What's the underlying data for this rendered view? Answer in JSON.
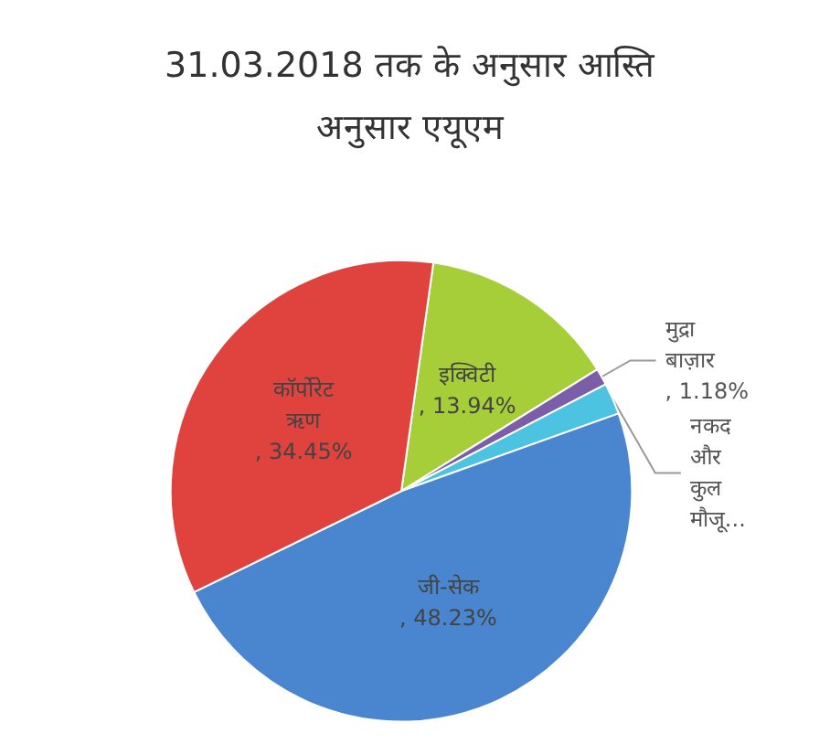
{
  "chart_data": {
    "type": "pie",
    "title": "31.03.2018 तक के अनुसार आस्ति\nअनुसार एयूएम",
    "categories": [
      "इक्विटी",
      "मुद्रा बाज़ार",
      "नकद और कुल मौजू...",
      "जी-सेक",
      "कॉर्पोरेट ऋण"
    ],
    "values": [
      13.94,
      1.18,
      2.2,
      48.23,
      34.45
    ],
    "value_labels": [
      ", 13.94%",
      ", 1.18%",
      null,
      ", 48.23%",
      ", 34.45%"
    ],
    "colors": [
      "#a6ce39",
      "#7b5ea7",
      "#4cc3e0",
      "#4a86d0",
      "#e0433e"
    ],
    "legend": false
  }
}
